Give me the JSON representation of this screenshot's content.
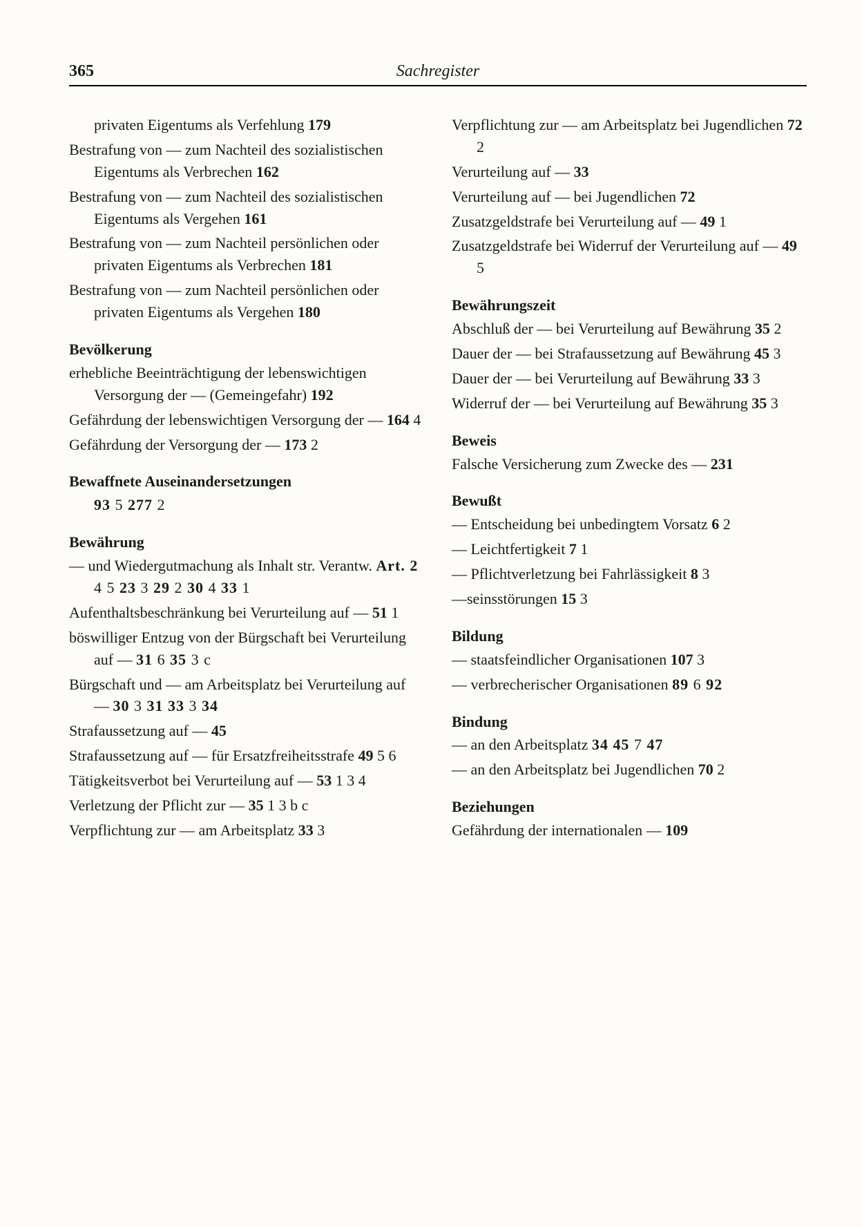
{
  "pageNumber": "365",
  "headerTitle": "Sachregister",
  "leftColumn": [
    {
      "type": "entry",
      "html": "privaten Eigentums als Verfehlung  <span class='b'>179</span>",
      "extraIndent": true
    },
    {
      "type": "entry",
      "html": "Bestrafung von — zum Nachteil des sozialistischen Eigentums als Verbrechen  <span class='b'>162</span>"
    },
    {
      "type": "entry",
      "html": "Bestrafung von — zum Nachteil des sozialistischen Eigentums als Vergehen  <span class='b'>161</span>"
    },
    {
      "type": "entry",
      "html": "Bestrafung von — zum Nachteil persönlichen oder privaten Eigentums als Verbrechen  <span class='b'>181</span>"
    },
    {
      "type": "entry",
      "html": "Bestrafung von — zum Nachteil persönlichen oder privaten Eigentums als Vergehen  <span class='b'>180</span>"
    },
    {
      "type": "heading",
      "text": "Bevölkerung"
    },
    {
      "type": "entry",
      "html": "erhebliche Beeinträchtigung der lebenswichtigen Versorgung der — (Gemeingefahr)  <span class='b'>192</span>"
    },
    {
      "type": "entry",
      "html": "Gefährdung der lebenswichtigen Versorgung der —  <span class='b'>164</span> 4"
    },
    {
      "type": "entry",
      "html": "Gefährdung der Versorgung der —  <span class='b'>173</span> 2"
    },
    {
      "type": "heading",
      "text": "Bewaffnete Auseinandersetzungen"
    },
    {
      "type": "entry",
      "html": "<span class='refs'><span class='b'>93</span> 5  <span class='b'>277</span> 2</span>",
      "extraIndent": true
    },
    {
      "type": "heading",
      "text": "Bewährung"
    },
    {
      "type": "entry",
      "html": "— und Wiedergutmachung als Inhalt str. Verantw.  <span class='refs'><span class='b'>Art. 2</span> 4 5  <span class='b'>23</span> 3  <span class='b'>29</span> 2  <span class='b'>30</span> 4  <span class='b'>33</span> 1</span>"
    },
    {
      "type": "entry",
      "html": "Aufenthaltsbeschränkung bei Verurteilung auf —  <span class='b'>51</span> 1"
    },
    {
      "type": "entry",
      "html": "böswilliger Entzug von der Bürgschaft bei Verurteilung auf —  <span class='refs'><span class='b'>31</span> 6  <span class='b'>35</span> 3 c</span>"
    },
    {
      "type": "entry",
      "html": "Bürgschaft und — am Arbeitsplatz bei Verurteilung auf —  <span class='refs'><span class='b'>30</span> 3  <span class='b'>31</span>  <span class='b'>33</span> 3  <span class='b'>34</span></span>"
    },
    {
      "type": "entry",
      "html": "Strafaussetzung auf —  <span class='b'>45</span>"
    },
    {
      "type": "entry",
      "html": "Strafaussetzung auf — für Ersatzfreiheitsstrafe  <span class='b'>49</span> 5 6"
    },
    {
      "type": "entry",
      "html": "Tätigkeitsverbot bei Verurteilung auf —  <span class='b'>53</span> 1 3 4"
    },
    {
      "type": "entry",
      "html": "Verletzung der Pflicht zur —  <span class='b'>35</span> 1 3 b c"
    },
    {
      "type": "entry",
      "html": "Verpflichtung zur — am Arbeitsplatz  <span class='b'>33</span> 3"
    }
  ],
  "rightColumn": [
    {
      "type": "entry",
      "html": "Verpflichtung zur — am Arbeitsplatz bei Jugendlichen  <span class='b'>72</span> 2"
    },
    {
      "type": "entry",
      "html": "Verurteilung auf —  <span class='b'>33</span>"
    },
    {
      "type": "entry",
      "html": "Verurteilung auf — bei Jugendlichen  <span class='b'>72</span>"
    },
    {
      "type": "entry",
      "html": "Zusatzgeldstrafe bei Verurteilung auf —  <span class='b'>49</span> 1"
    },
    {
      "type": "entry",
      "html": "Zusatzgeldstrafe bei Widerruf der Verurteilung auf —  <span class='b'>49</span> 5"
    },
    {
      "type": "heading",
      "text": "Bewährungszeit"
    },
    {
      "type": "entry",
      "html": "Abschluß der — bei Verurteilung auf Bewährung  <span class='b'>35</span> 2"
    },
    {
      "type": "entry",
      "html": "Dauer der — bei Strafaussetzung auf Bewährung  <span class='b'>45</span> 3"
    },
    {
      "type": "entry",
      "html": "Dauer der — bei Verurteilung auf Bewährung  <span class='b'>33</span> 3"
    },
    {
      "type": "entry",
      "html": "Widerruf der — bei Verurteilung auf Bewährung  <span class='b'>35</span> 3"
    },
    {
      "type": "heading",
      "text": "Beweis"
    },
    {
      "type": "entry",
      "html": "Falsche Versicherung zum Zwecke des —  <span class='b'>231</span>"
    },
    {
      "type": "heading",
      "text": "Bewußt"
    },
    {
      "type": "entry",
      "html": "— Entscheidung bei unbedingtem Vorsatz  <span class='b'>6</span> 2"
    },
    {
      "type": "entry",
      "html": "— Leichtfertigkeit  <span class='b'>7</span> 1"
    },
    {
      "type": "entry",
      "html": "— Pflichtverletzung bei Fahrlässigkeit  <span class='b'>8</span> 3"
    },
    {
      "type": "entry",
      "html": "—seinsstörungen  <span class='b'>15</span> 3"
    },
    {
      "type": "heading",
      "text": "Bildung"
    },
    {
      "type": "entry",
      "html": "— staatsfeindlicher Organisationen  <span class='b'>107</span> 3"
    },
    {
      "type": "entry",
      "html": "— verbrecherischer Organisationen  <span class='refs'><span class='b'>89</span> 6  <span class='b'>92</span></span>"
    },
    {
      "type": "heading",
      "text": "Bindung"
    },
    {
      "type": "entry",
      "html": "— an den Arbeitsplatz  <span class='refs'><span class='b'>34</span>  <span class='b'>45</span> 7  <span class='b'>47</span></span>"
    },
    {
      "type": "entry",
      "html": "— an den Arbeitsplatz bei Jugendlichen  <span class='b'>70</span> 2"
    },
    {
      "type": "heading",
      "text": "Beziehungen"
    },
    {
      "type": "entry",
      "html": "Gefährdung der internationalen —  <span class='b'>109</span>"
    }
  ]
}
